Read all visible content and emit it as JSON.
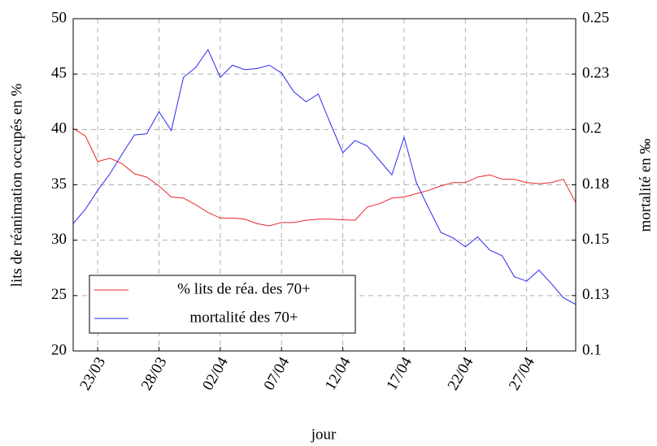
{
  "chart_data": {
    "type": "line",
    "xlabel": "jour",
    "ylabel": "lits de réanimation occupés en %",
    "y2label": "mortalité en ‰",
    "categories": [
      null,
      null,
      "23/03",
      null,
      null,
      null,
      null,
      "28/03",
      null,
      null,
      null,
      null,
      "02/04",
      null,
      null,
      null,
      null,
      "07/04",
      null,
      null,
      null,
      null,
      "12/04",
      null,
      null,
      null,
      null,
      "17/04",
      null,
      null,
      null,
      null,
      "22/04",
      null,
      null,
      null,
      null,
      "27/04",
      null,
      null,
      null,
      null
    ],
    "series": [
      {
        "name": "% lits de réa. des 70+",
        "color": "#e8262a",
        "values": [
          40.1,
          39.4,
          37.1,
          37.4,
          36.9,
          36.0,
          35.7,
          34.9,
          33.9,
          33.8,
          33.2,
          32.5,
          32.0,
          32.0,
          31.9,
          31.5,
          31.3,
          31.6,
          31.6,
          31.8,
          31.9,
          31.9,
          31.85,
          31.8,
          33.0,
          33.3,
          33.8,
          33.9,
          34.2,
          34.5,
          34.9,
          35.2,
          35.2,
          35.7,
          35.9,
          35.5,
          35.5,
          35.2,
          35.1,
          35.2,
          35.5,
          33.4
        ]
      },
      {
        "name": "mortalité des 70+",
        "color": "#2b2bf0",
        "axis": "y2",
        "values": [
          0.1575,
          0.164,
          0.1725,
          0.18,
          0.189,
          0.1975,
          0.198,
          0.208,
          0.1995,
          0.2235,
          0.228,
          0.236,
          0.2235,
          0.229,
          0.227,
          0.2275,
          0.229,
          0.2255,
          0.217,
          0.2125,
          0.216,
          0.2025,
          0.1895,
          0.195,
          0.1925,
          0.186,
          0.1795,
          0.1965,
          0.176,
          0.1645,
          0.1535,
          0.151,
          0.147,
          0.1515,
          0.1455,
          0.143,
          0.1335,
          0.1315,
          0.1365,
          0.1305,
          0.124,
          0.121
        ]
      }
    ],
    "ylim": [
      20,
      50
    ],
    "yticks": [
      20,
      25,
      30,
      35,
      40,
      45,
      50
    ],
    "y2lim": [
      0.1,
      0.25
    ],
    "y2ticks": [
      0.1,
      {
        "value": 0.125,
        "label": "0.13"
      },
      0.15,
      {
        "value": 0.175,
        "label": "0.18"
      },
      0.2,
      {
        "value": 0.225,
        "label": "0.23"
      },
      0.25
    ],
    "grid": true,
    "legend": "lower left"
  }
}
